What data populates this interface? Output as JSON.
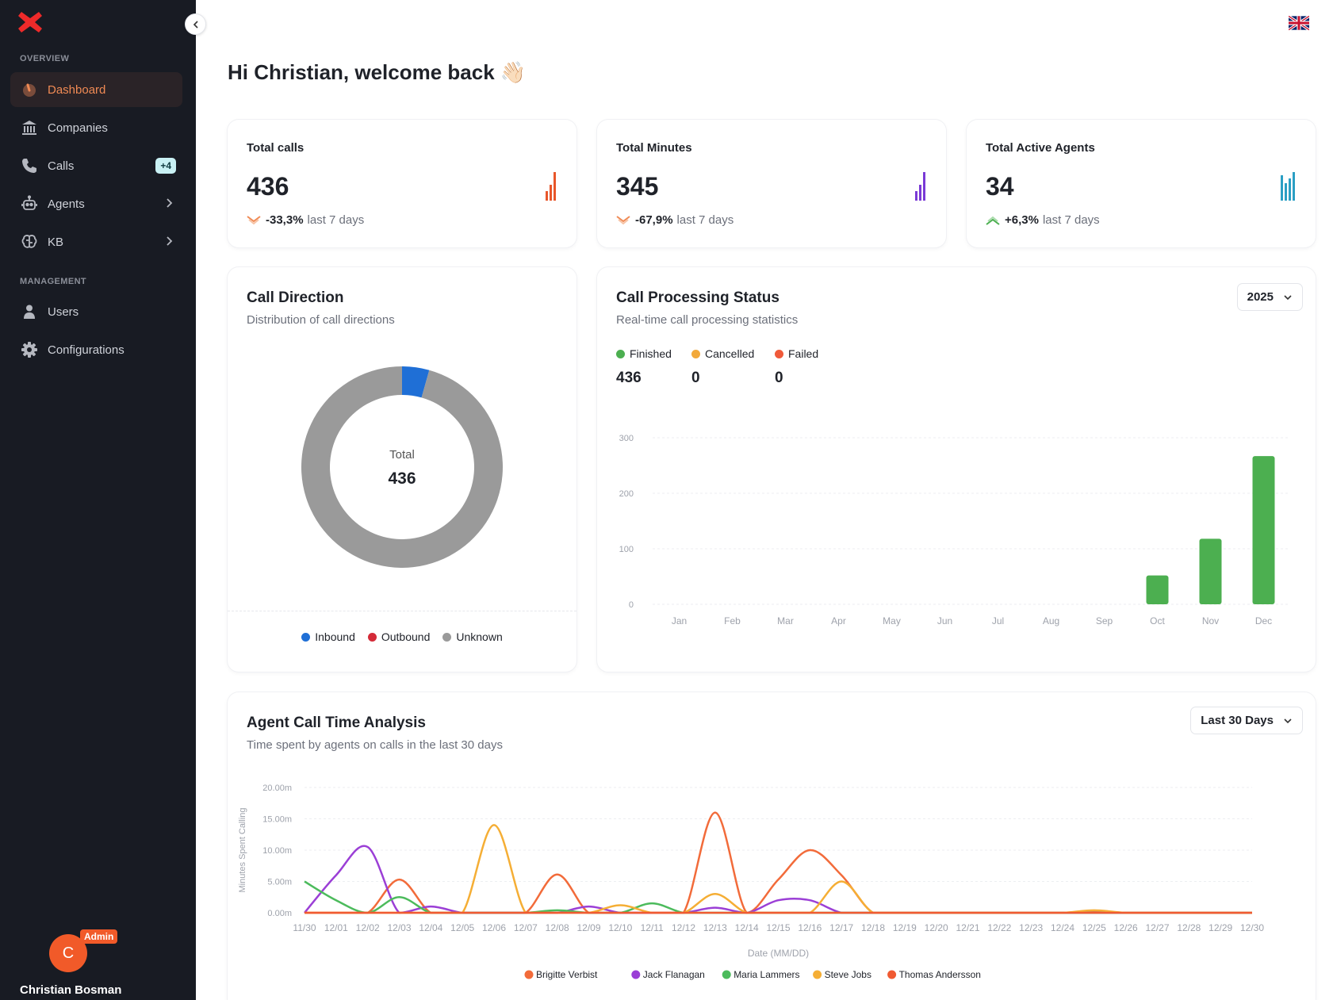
{
  "sidebar": {
    "section_overview": "OVERVIEW",
    "section_management": "MANAGEMENT",
    "items": [
      {
        "label": "Dashboard"
      },
      {
        "label": "Companies"
      },
      {
        "label": "Calls",
        "badge": "+4"
      },
      {
        "label": "Agents"
      },
      {
        "label": "KB"
      },
      {
        "label": "Users"
      },
      {
        "label": "Configurations"
      }
    ],
    "user": {
      "initial": "C",
      "role": "Admin",
      "name": "Christian Bosman"
    }
  },
  "header": {
    "greeting": "Hi Christian, welcome back 👋🏻"
  },
  "stats": [
    {
      "title": "Total calls",
      "value": "436",
      "change": "-33,3%",
      "period": "last 7 days",
      "direction": "down",
      "color": "#e8562a"
    },
    {
      "title": "Total Minutes",
      "value": "345",
      "change": "-67,9%",
      "period": "last 7 days",
      "direction": "down",
      "color": "#7a3ad6"
    },
    {
      "title": "Total Active Agents",
      "value": "34",
      "change": "+6,3%",
      "period": "last 7 days",
      "direction": "up",
      "color": "#2b9fc4"
    }
  ],
  "call_direction": {
    "title": "Call Direction",
    "subtitle": "Distribution of call directions",
    "center_label": "Total",
    "center_value": "436",
    "legend": [
      {
        "label": "Inbound",
        "color": "#1f6fd6"
      },
      {
        "label": "Outbound",
        "color": "#d42a38"
      },
      {
        "label": "Unknown",
        "color": "#9a9a9a"
      }
    ]
  },
  "processing": {
    "title": "Call Processing Status",
    "subtitle": "Real-time call processing statistics",
    "year": "2025",
    "statuses": [
      {
        "label": "Finished",
        "value": "436",
        "color": "#4caf50"
      },
      {
        "label": "Cancelled",
        "value": "0",
        "color": "#f2a93b"
      },
      {
        "label": "Failed",
        "value": "0",
        "color": "#f05a3a"
      }
    ]
  },
  "agent_analysis": {
    "title": "Agent Call Time Analysis",
    "subtitle": "Time spent by agents on calls in the last 30 days",
    "range": "Last 30 Days"
  },
  "chart_data": [
    {
      "type": "pie",
      "title": "Call Direction",
      "categories": [
        "Inbound",
        "Outbound",
        "Unknown"
      ],
      "values": [
        19,
        0,
        417
      ],
      "colors": [
        "#1f6fd6",
        "#d42a38",
        "#9a9a9a"
      ],
      "total": 436
    },
    {
      "type": "bar",
      "title": "Call Processing Status",
      "categories": [
        "Jan",
        "Feb",
        "Mar",
        "Apr",
        "May",
        "Jun",
        "Jul",
        "Aug",
        "Sep",
        "Oct",
        "Nov",
        "Dec"
      ],
      "yticks": [
        "0",
        "100",
        "200",
        "300"
      ],
      "ylim": [
        0,
        300
      ],
      "series": [
        {
          "name": "Finished",
          "color": "#4caf50",
          "values": [
            0,
            0,
            0,
            0,
            0,
            0,
            0,
            0,
            0,
            52,
            118,
            267
          ]
        }
      ]
    },
    {
      "type": "line",
      "title": "Agent Call Time Analysis",
      "xlabel": "Date (MM/DD)",
      "ylabel": "Minutes Spent Calling",
      "ylim": [
        0,
        20
      ],
      "yticks": [
        "0.00m",
        "5.00m",
        "10.00m",
        "15.00m",
        "20.00m"
      ],
      "x": [
        "11/30",
        "12/01",
        "12/02",
        "12/03",
        "12/04",
        "12/05",
        "12/06",
        "12/07",
        "12/08",
        "12/09",
        "12/10",
        "12/11",
        "12/12",
        "12/13",
        "12/14",
        "12/15",
        "12/16",
        "12/17",
        "12/18",
        "12/19",
        "12/20",
        "12/21",
        "12/22",
        "12/23",
        "12/24",
        "12/25",
        "12/26",
        "12/27",
        "12/28",
        "12/29",
        "12/30"
      ],
      "series": [
        {
          "name": "Brigitte Verbist",
          "color": "#f26b3a",
          "values": [
            0,
            0,
            0,
            5.3,
            0,
            0,
            0,
            0,
            6.1,
            0,
            0,
            0,
            0,
            16,
            0,
            5.3,
            10,
            6,
            0,
            0,
            0,
            0,
            0,
            0,
            0,
            0.2,
            0,
            0,
            0,
            0,
            0
          ]
        },
        {
          "name": "Jack Flanagan",
          "color": "#9b3fd6",
          "values": [
            0,
            6,
            10.5,
            0,
            1,
            0,
            0,
            0,
            0,
            1,
            0,
            0,
            0,
            0.8,
            0,
            2,
            2,
            0,
            0,
            0,
            0,
            0,
            0,
            0,
            0,
            0,
            0,
            0,
            0,
            0,
            0
          ]
        },
        {
          "name": "Maria Lammers",
          "color": "#4cbb5c",
          "values": [
            5,
            2,
            0,
            2.5,
            0,
            0,
            0,
            0,
            0.4,
            0,
            0,
            1.5,
            0,
            0,
            0,
            0,
            0,
            0,
            0,
            0,
            0,
            0,
            0,
            0,
            0,
            0,
            0,
            0,
            0,
            0,
            0
          ]
        },
        {
          "name": "Steve Jobs",
          "color": "#f5ae35",
          "values": [
            0,
            0,
            0,
            0,
            0,
            0,
            14,
            0,
            0,
            0,
            1.2,
            0,
            0,
            3,
            0,
            0,
            0,
            5,
            0,
            0,
            0,
            0,
            0,
            0,
            0,
            0.4,
            0,
            0,
            0,
            0,
            0
          ]
        },
        {
          "name": "Thomas Andersson",
          "color": "#f05a32",
          "values": [
            0,
            0,
            0,
            0,
            0,
            0,
            0,
            0,
            0,
            0,
            0,
            0,
            0,
            0,
            0,
            0,
            0,
            0,
            0,
            0,
            0,
            0,
            0,
            0,
            0,
            0,
            0,
            0,
            0,
            0,
            0
          ]
        }
      ]
    }
  ]
}
